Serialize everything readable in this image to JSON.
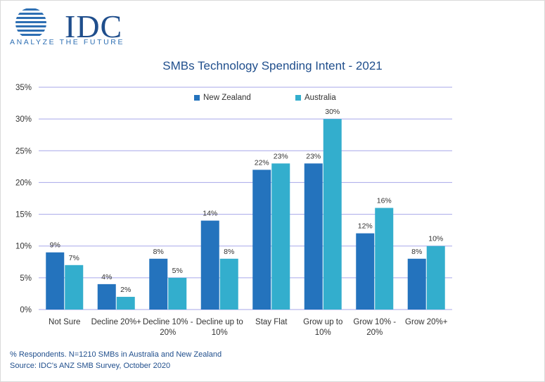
{
  "logo": {
    "name": "IDC",
    "tagline": "ANALYZE THE FUTURE"
  },
  "colors": {
    "new_zealand": "#2473bd",
    "australia": "#33aecd",
    "grid": "#a7a7ea",
    "axis_text": "#333333",
    "title": "#1f4e8c"
  },
  "chart_data": {
    "type": "bar",
    "title": "SMBs Technology Spending Intent - 2021",
    "categories": [
      [
        "Not Sure"
      ],
      [
        "Decline 20%+"
      ],
      [
        "Decline 10% -",
        "20%"
      ],
      [
        "Decline up to",
        "10%"
      ],
      [
        "Stay Flat"
      ],
      [
        "Grow up to",
        "10%"
      ],
      [
        "Grow 10% -",
        "20%"
      ],
      [
        "Grow 20%+"
      ]
    ],
    "series": [
      {
        "name": "New Zealand",
        "values": [
          9,
          4,
          8,
          14,
          22,
          23,
          12,
          8
        ],
        "labels": [
          "9%",
          "4%",
          "8%",
          "14%",
          "22%",
          "23%",
          "12%",
          "8%"
        ]
      },
      {
        "name": "Australia",
        "values": [
          7,
          2,
          5,
          8,
          23,
          30,
          16,
          10
        ],
        "labels": [
          "7%",
          "2%",
          "5%",
          "8%",
          "23%",
          "30%",
          "16%",
          "10%"
        ]
      }
    ],
    "y_ticks": [
      "0%",
      "5%",
      "10%",
      "15%",
      "20%",
      "25%",
      "30%",
      "35%"
    ],
    "ylim": [
      0,
      35
    ],
    "grid": true,
    "legend_position": "top"
  },
  "footnotes": {
    "respondents": "% Respondents. N=1210 SMBs in Australia and New Zealand",
    "source": "Source: IDC's ANZ SMB Survey, October 2020"
  }
}
